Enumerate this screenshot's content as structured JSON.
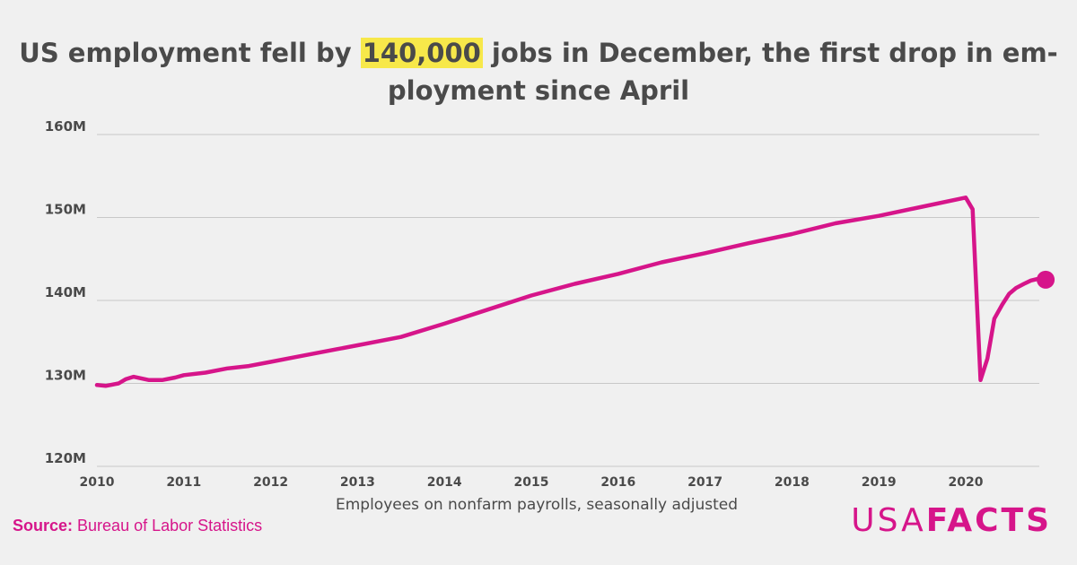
{
  "title": {
    "before": "US employment fell by ",
    "highlight": "140,000",
    "after": " jobs in December, the first drop in em-ployment since April"
  },
  "source": {
    "label": "Source:",
    "text": " Bureau of Labor Statistics"
  },
  "logo": {
    "part1": "USA",
    "part2": "FACTS"
  },
  "colors": {
    "line": "#d6158a",
    "highlight": "#f7e84a",
    "text": "#4a4a4a",
    "grid": "#c8c8c8"
  },
  "chart_data": {
    "type": "line",
    "title": "US employment fell by 140,000 jobs in December, the first drop in em-ployment since April",
    "xlabel": "Employees on nonfarm payrolls, seasonally adjusted",
    "ylabel": "",
    "xlim": [
      2010,
      2021
    ],
    "ylim": [
      120,
      160
    ],
    "x_ticks": [
      2010,
      2011,
      2012,
      2013,
      2014,
      2015,
      2016,
      2017,
      2018,
      2019,
      2020
    ],
    "x_tick_labels": [
      "2010",
      "2011",
      "2012",
      "2013",
      "2014",
      "2015",
      "2016",
      "2017",
      "2018",
      "2019",
      "2020"
    ],
    "y_ticks": [
      120,
      130,
      140,
      150,
      160
    ],
    "y_tick_labels": [
      "120M",
      "130M",
      "140M",
      "150M",
      "160M"
    ],
    "grid": true,
    "series": [
      {
        "name": "",
        "x": [
          2010.0,
          2010.1,
          2010.25,
          2010.33,
          2010.42,
          2010.6,
          2010.75,
          2010.9,
          2011.0,
          2011.25,
          2011.5,
          2011.75,
          2012.0,
          2012.25,
          2012.5,
          2012.75,
          2013.0,
          2013.5,
          2014.0,
          2014.5,
          2015.0,
          2015.5,
          2016.0,
          2016.5,
          2017.0,
          2017.5,
          2018.0,
          2018.5,
          2019.0,
          2019.5,
          2020.0,
          2020.08,
          2020.17,
          2020.25,
          2020.33,
          2020.42,
          2020.5,
          2020.58,
          2020.67,
          2020.75,
          2020.83,
          2020.92
        ],
        "values": [
          129.8,
          129.7,
          130.0,
          130.5,
          130.8,
          130.4,
          130.4,
          130.7,
          131.0,
          131.3,
          131.8,
          132.1,
          132.6,
          133.1,
          133.6,
          134.1,
          134.6,
          135.6,
          137.2,
          138.9,
          140.6,
          142.0,
          143.2,
          144.6,
          145.7,
          146.9,
          148.0,
          149.3,
          150.2,
          151.3,
          152.4,
          151.0,
          130.4,
          133.0,
          137.8,
          139.5,
          140.8,
          141.5,
          142.0,
          142.4,
          142.6,
          142.5
        ]
      }
    ],
    "annotations": [
      {
        "type": "marker",
        "x": 2020.92,
        "y": 142.5
      }
    ]
  }
}
